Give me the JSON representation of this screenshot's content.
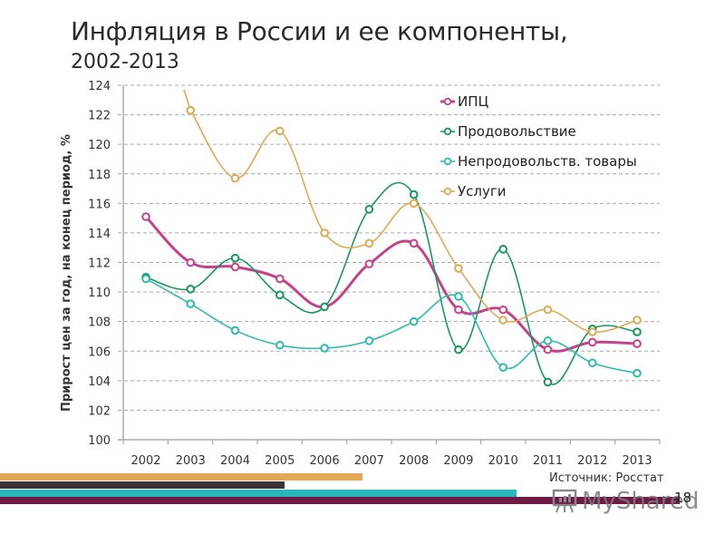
{
  "header": {
    "title": "Инфляция в России и ее компоненты,",
    "subtitle": "2002-2013"
  },
  "footer": {
    "source": "Источник: Росстат",
    "page_number": "18",
    "watermark": "MyShared",
    "stripe_colors": [
      "#e3a857",
      "#3d3238",
      "#2ab7b9",
      "#6e1a45"
    ]
  },
  "chart_data": {
    "type": "line",
    "title": "Инфляция в России и ее компоненты, 2002-2013",
    "xlabel": "",
    "ylabel": "Прирост цен за год, на конец период, %",
    "ylim": [
      100,
      124
    ],
    "yticks": [
      100,
      102,
      104,
      106,
      108,
      110,
      112,
      114,
      116,
      118,
      120,
      122,
      124
    ],
    "grid": true,
    "legend_position": "top-right",
    "categories": [
      "2002",
      "2003",
      "2004",
      "2005",
      "2006",
      "2007",
      "2008",
      "2009",
      "2010",
      "2011",
      "2012",
      "2013"
    ],
    "series": [
      {
        "name": "ИПЦ",
        "color": "#c2438a",
        "width": 3,
        "values": [
          115.1,
          112.0,
          111.7,
          110.9,
          109.0,
          111.9,
          113.3,
          108.8,
          108.8,
          106.1,
          106.6,
          106.5
        ]
      },
      {
        "name": "Продовольствие",
        "color": "#1e9460",
        "width": 1.6,
        "values": [
          111.0,
          110.2,
          112.3,
          109.8,
          109.0,
          115.6,
          116.6,
          106.1,
          112.9,
          103.9,
          107.5,
          107.3
        ]
      },
      {
        "name": "Непродовольств. товары",
        "color": "#33b8ad",
        "width": 1.6,
        "values": [
          110.9,
          109.2,
          107.4,
          106.4,
          106.2,
          106.7,
          108.0,
          109.7,
          104.9,
          106.7,
          105.2,
          104.5
        ]
      },
      {
        "name": "Услуги",
        "color": "#d9aa5a",
        "width": 1.6,
        "values": [
          null,
          122.3,
          117.7,
          120.9,
          114.0,
          113.3,
          116.0,
          111.6,
          108.1,
          108.8,
          107.3,
          108.1
        ]
      }
    ]
  }
}
